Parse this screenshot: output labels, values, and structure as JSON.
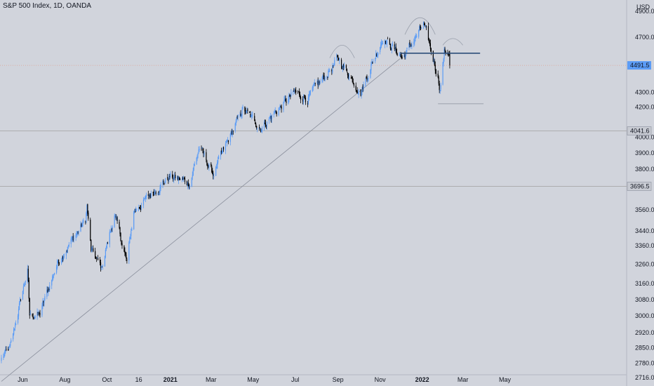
{
  "header": {
    "title": "S&P 500 Index, 1D, OANDA",
    "currency": "USD"
  },
  "colors": {
    "background": "#d1d4dc",
    "candle_up": "#5b9cf6",
    "candle_down": "#000000",
    "trendline": "#8a8f9c",
    "neckline": "#2c4e7a",
    "price_tag": "#5b9cf6",
    "level_line": "#a0a0a0"
  },
  "chart_data": {
    "type": "candlestick",
    "title": "S&P 500 Index, 1D, OANDA",
    "ylabel": "USD",
    "y_scale": "log",
    "ylim": [
      2680,
      4990
    ],
    "y_ticks": [
      "2716.0",
      "2780.0",
      "2850.0",
      "2920.0",
      "3000.0",
      "3080.0",
      "3160.0",
      "3260.0",
      "3360.0",
      "3440.0",
      "3560.0",
      "3800.0",
      "3900.0",
      "4000.0",
      "4200.0",
      "4300.0",
      "4700.0",
      "4900.0"
    ],
    "x_ticks": [
      "Jun",
      "Aug",
      "Oct",
      "16",
      "2021",
      "Mar",
      "May",
      "Jul",
      "Sep",
      "Nov",
      "2022",
      "Mar",
      "May"
    ],
    "bold_x_ticks": [
      "2021",
      "2022"
    ],
    "price_labels": [
      {
        "value": "4491.5",
        "price": 4491.5,
        "style": "current"
      },
      {
        "value": "4041.6",
        "price": 4041.6,
        "style": "level"
      },
      {
        "value": "3696.5",
        "price": 3696.5,
        "style": "level"
      }
    ],
    "close_anchors": [
      {
        "date": "2020-05-01",
        "close": 2800
      },
      {
        "date": "2020-05-14",
        "close": 2850
      },
      {
        "date": "2020-06-08",
        "close": 3230
      },
      {
        "date": "2020-06-11",
        "close": 3000
      },
      {
        "date": "2020-06-26",
        "close": 3010
      },
      {
        "date": "2020-07-22",
        "close": 3275
      },
      {
        "date": "2020-08-31",
        "close": 3500
      },
      {
        "date": "2020-09-02",
        "close": 3580
      },
      {
        "date": "2020-09-08",
        "close": 3330
      },
      {
        "date": "2020-09-23",
        "close": 3240
      },
      {
        "date": "2020-10-12",
        "close": 3530
      },
      {
        "date": "2020-10-30",
        "close": 3270
      },
      {
        "date": "2020-11-09",
        "close": 3550
      },
      {
        "date": "2020-12-31",
        "close": 3756
      },
      {
        "date": "2021-01-29",
        "close": 3714
      },
      {
        "date": "2021-02-12",
        "close": 3935
      },
      {
        "date": "2021-03-04",
        "close": 3768
      },
      {
        "date": "2021-04-16",
        "close": 4185
      },
      {
        "date": "2021-05-12",
        "close": 4063
      },
      {
        "date": "2021-06-30",
        "close": 4298
      },
      {
        "date": "2021-07-19",
        "close": 4258
      },
      {
        "date": "2021-09-02",
        "close": 4537
      },
      {
        "date": "2021-10-04",
        "close": 4300
      },
      {
        "date": "2021-11-05",
        "close": 4697
      },
      {
        "date": "2021-11-30",
        "close": 4567
      },
      {
        "date": "2021-12-03",
        "close": 4538
      },
      {
        "date": "2022-01-03",
        "close": 4796
      },
      {
        "date": "2022-01-24",
        "close": 4410
      },
      {
        "date": "2022-01-27",
        "close": 4326
      },
      {
        "date": "2022-02-02",
        "close": 4589
      },
      {
        "date": "2022-02-09",
        "close": 4587
      },
      {
        "date": "2022-02-10",
        "close": 4491.5
      }
    ],
    "trendline": {
      "from": {
        "date": "2020-05-01",
        "price": 2700
      },
      "to": {
        "date": "2021-11-30",
        "price": 4540
      }
    },
    "neckline": {
      "from": {
        "date": "2021-12-01",
        "price": 4580
      },
      "to": {
        "date": "2022-03-26",
        "price": 4580
      }
    },
    "support_line": {
      "from": {
        "date": "2022-01-24",
        "price": 4222
      },
      "to": {
        "date": "2022-03-31",
        "price": 4222
      }
    },
    "head_and_shoulders_arcs": [
      {
        "from": {
          "date": "2021-08-20",
          "price": 4545
        },
        "to": {
          "date": "2021-09-25",
          "price": 4545
        },
        "peak": 4640
      },
      {
        "from": {
          "date": "2021-12-07",
          "price": 4720
        },
        "to": {
          "date": "2022-01-20",
          "price": 4720
        },
        "peak": 4850
      },
      {
        "from": {
          "date": "2022-01-31",
          "price": 4640
        },
        "to": {
          "date": "2022-03-01",
          "price": 4640
        },
        "peak": 4690
      }
    ]
  }
}
